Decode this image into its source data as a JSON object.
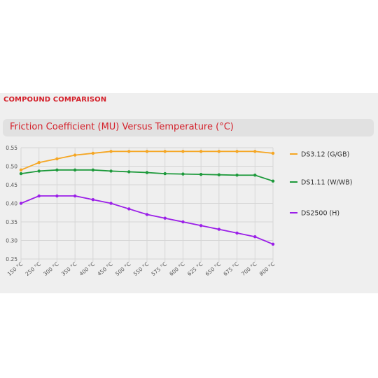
{
  "section": {
    "title": "COMPOUND COMPARISON"
  },
  "chart_data": {
    "type": "line",
    "title": "Friction Coefficient (MU) Versus Temperature (°C)",
    "xlabel": "",
    "ylabel": "",
    "categories": [
      "150 °C",
      "250 °C",
      "300 °C",
      "350 °C",
      "400 °C",
      "450 °C",
      "500 °C",
      "550 °C",
      "575 °C",
      "600 °C",
      "625 °C",
      "650 °C",
      "675 °C",
      "700 °C",
      "800 °C"
    ],
    "ylim": [
      0.25,
      0.55
    ],
    "yticks": [
      "0.55",
      "0.50",
      "0.45",
      "0.40",
      "0.35",
      "0.30",
      "0.25"
    ],
    "grid": true,
    "legend_position": "right",
    "series": [
      {
        "name": "DS3.12 (G/GB)",
        "color": "#f5a623",
        "values": [
          0.49,
          0.51,
          0.52,
          0.53,
          0.535,
          0.54,
          0.54,
          0.54,
          0.54,
          0.54,
          0.54,
          0.54,
          0.54,
          0.54,
          0.535
        ]
      },
      {
        "name": "DS1.11 (W/WB)",
        "color": "#1e9a3c",
        "values": [
          0.48,
          0.487,
          0.49,
          0.49,
          0.49,
          0.487,
          0.485,
          0.483,
          0.48,
          0.479,
          0.478,
          0.477,
          0.476,
          0.476,
          0.46
        ]
      },
      {
        "name": "DS2500 (H)",
        "color": "#9b1fe8",
        "values": [
          0.4,
          0.42,
          0.42,
          0.42,
          0.41,
          0.4,
          0.385,
          0.37,
          0.36,
          0.35,
          0.34,
          0.33,
          0.32,
          0.31,
          0.29
        ]
      }
    ]
  }
}
